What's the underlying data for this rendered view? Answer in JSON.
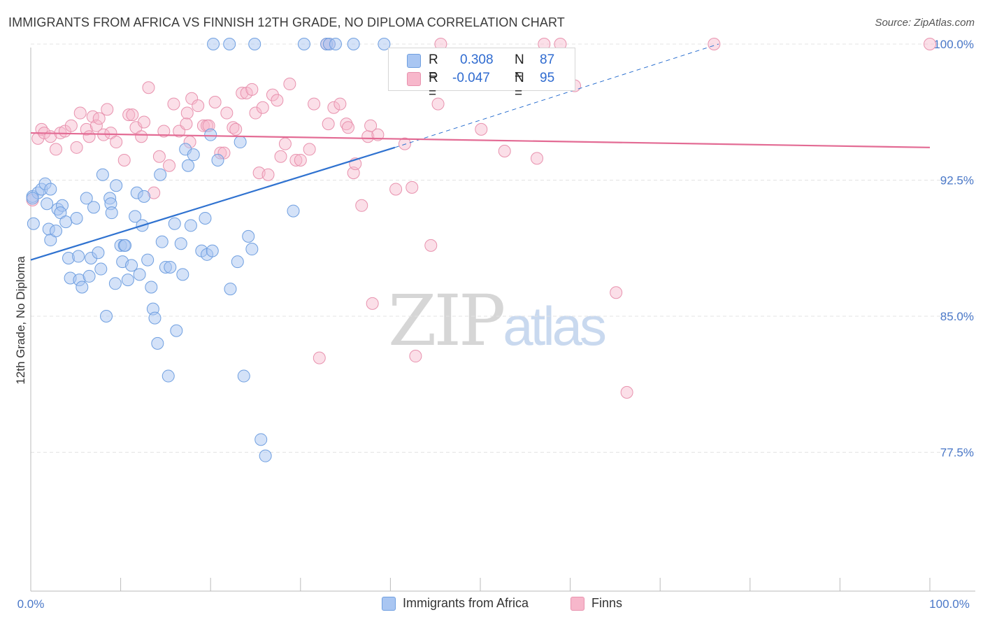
{
  "header": {
    "title": "IMMIGRANTS FROM AFRICA VS FINNISH 12TH GRADE, NO DIPLOMA CORRELATION CHART",
    "source": "Source: ZipAtlas.com"
  },
  "watermark": {
    "zip": "ZIP",
    "atlas": "atlas"
  },
  "legend_top": {
    "rows": [
      {
        "r_label": "R =",
        "r_value": "0.308",
        "n_label": "N =",
        "n_value": "87"
      },
      {
        "r_label": "R =",
        "r_value": "-0.047",
        "n_label": "N =",
        "n_value": "95"
      }
    ]
  },
  "legend_bottom": {
    "items": [
      {
        "label": "Immigrants from Africa"
      },
      {
        "label": "Finns"
      }
    ]
  },
  "colors": {
    "blue_fill": "#a9c6f2",
    "blue_stroke": "#6f9fe0",
    "blue_line": "#2f72d0",
    "pink_fill": "#f7b7cb",
    "pink_stroke": "#e892ae",
    "pink_line": "#e36b94",
    "grid": "#e3e3e3",
    "tick_label": "#4a78c8"
  },
  "chart_data": {
    "type": "scatter",
    "title": "IMMIGRANTS FROM AFRICA VS FINNISH 12TH GRADE, NO DIPLOMA CORRELATION CHART",
    "xlabel": "",
    "ylabel": "12th Grade, No Diploma",
    "xlim": [
      0,
      100
    ],
    "ylim": [
      70.5,
      101.5
    ],
    "x_tick_labels": [
      "0.0%",
      "100.0%"
    ],
    "y_ticks": [
      77.5,
      85.0,
      92.5,
      100.0
    ],
    "y_tick_labels": [
      "77.5%",
      "85.0%",
      "92.5%",
      "100.0%"
    ],
    "grid": true,
    "series": [
      {
        "name": "Immigrants from Africa",
        "r": 0.308,
        "n": 87,
        "trend": {
          "x0": 0,
          "y0": 88.1,
          "x1": 40.5,
          "y1": 94.3,
          "dash_to_x": 76.5,
          "dash_to_y": 100.0
        },
        "points": [
          [
            0.2,
            91.6
          ],
          [
            0.3,
            90.1
          ],
          [
            0.8,
            91.8
          ],
          [
            1.2,
            92.0
          ],
          [
            1.6,
            92.3
          ],
          [
            1.8,
            91.2
          ],
          [
            2.2,
            92.0
          ],
          [
            2.0,
            89.8
          ],
          [
            2.2,
            89.2
          ],
          [
            2.8,
            89.7
          ],
          [
            3.0,
            90.9
          ],
          [
            3.5,
            91.1
          ],
          [
            3.3,
            90.7
          ],
          [
            3.9,
            90.2
          ],
          [
            4.2,
            88.2
          ],
          [
            4.4,
            87.1
          ],
          [
            5.1,
            90.4
          ],
          [
            5.3,
            88.3
          ],
          [
            5.4,
            87.0
          ],
          [
            5.7,
            86.6
          ],
          [
            6.2,
            91.5
          ],
          [
            6.5,
            87.2
          ],
          [
            6.7,
            88.2
          ],
          [
            7.0,
            91.0
          ],
          [
            7.5,
            88.5
          ],
          [
            7.8,
            87.6
          ],
          [
            8.0,
            92.8
          ],
          [
            8.4,
            85.0
          ],
          [
            8.8,
            91.5
          ],
          [
            8.9,
            91.2
          ],
          [
            9.0,
            90.7
          ],
          [
            9.4,
            86.8
          ],
          [
            9.5,
            92.2
          ],
          [
            10.0,
            88.9
          ],
          [
            10.2,
            88.0
          ],
          [
            10.4,
            88.9
          ],
          [
            10.5,
            88.9
          ],
          [
            10.8,
            87.0
          ],
          [
            11.2,
            87.8
          ],
          [
            11.6,
            90.5
          ],
          [
            11.8,
            91.8
          ],
          [
            12.1,
            87.3
          ],
          [
            12.4,
            90.0
          ],
          [
            12.6,
            91.6
          ],
          [
            13.0,
            88.1
          ],
          [
            13.4,
            86.6
          ],
          [
            13.6,
            85.4
          ],
          [
            13.8,
            84.9
          ],
          [
            14.1,
            83.5
          ],
          [
            14.4,
            92.8
          ],
          [
            14.6,
            89.1
          ],
          [
            15.0,
            87.7
          ],
          [
            15.3,
            81.7
          ],
          [
            15.5,
            87.7
          ],
          [
            16.0,
            90.1
          ],
          [
            16.2,
            84.2
          ],
          [
            16.7,
            89.0
          ],
          [
            16.9,
            87.3
          ],
          [
            17.2,
            94.2
          ],
          [
            17.5,
            93.3
          ],
          [
            17.8,
            90.0
          ],
          [
            18.1,
            93.9
          ],
          [
            19.0,
            88.6
          ],
          [
            19.4,
            90.4
          ],
          [
            19.6,
            88.4
          ],
          [
            20.0,
            95.0
          ],
          [
            20.2,
            88.6
          ],
          [
            20.8,
            93.6
          ],
          [
            22.2,
            86.5
          ],
          [
            23.0,
            88.0
          ],
          [
            23.3,
            94.6
          ],
          [
            23.7,
            81.7
          ],
          [
            24.2,
            89.4
          ],
          [
            24.6,
            88.7
          ],
          [
            25.6,
            78.2
          ],
          [
            26.1,
            77.3
          ],
          [
            29.2,
            90.8
          ],
          [
            20.3,
            100.0
          ],
          [
            22.1,
            100.0
          ],
          [
            24.9,
            100.0
          ],
          [
            30.4,
            100.0
          ],
          [
            32.9,
            100.0
          ],
          [
            33.2,
            100.0
          ],
          [
            33.9,
            100.0
          ],
          [
            35.9,
            100.0
          ],
          [
            39.3,
            100.0
          ],
          [
            0.2,
            91.5
          ]
        ]
      },
      {
        "name": "Finns",
        "r": -0.047,
        "n": 95,
        "trend": {
          "x0": 0,
          "y0": 95.1,
          "x1": 100,
          "y1": 94.3
        },
        "points": [
          [
            0.2,
            91.4
          ],
          [
            0.8,
            94.8
          ],
          [
            1.2,
            95.3
          ],
          [
            1.5,
            95.1
          ],
          [
            2.2,
            94.9
          ],
          [
            2.8,
            94.2
          ],
          [
            3.3,
            95.1
          ],
          [
            3.8,
            95.2
          ],
          [
            4.5,
            95.5
          ],
          [
            5.1,
            94.3
          ],
          [
            5.5,
            96.2
          ],
          [
            6.2,
            95.3
          ],
          [
            6.5,
            94.9
          ],
          [
            6.9,
            96.0
          ],
          [
            7.3,
            95.5
          ],
          [
            7.6,
            95.9
          ],
          [
            8.1,
            95.0
          ],
          [
            8.5,
            96.4
          ],
          [
            8.9,
            95.1
          ],
          [
            9.5,
            94.6
          ],
          [
            10.4,
            93.6
          ],
          [
            10.9,
            96.1
          ],
          [
            11.3,
            96.1
          ],
          [
            11.7,
            95.4
          ],
          [
            12.3,
            94.9
          ],
          [
            12.6,
            95.7
          ],
          [
            13.1,
            97.6
          ],
          [
            13.7,
            91.8
          ],
          [
            14.3,
            93.8
          ],
          [
            14.8,
            95.2
          ],
          [
            15.4,
            93.3
          ],
          [
            15.9,
            96.7
          ],
          [
            16.5,
            95.2
          ],
          [
            17.3,
            95.6
          ],
          [
            17.7,
            94.6
          ],
          [
            17.4,
            96.2
          ],
          [
            17.9,
            97.0
          ],
          [
            18.6,
            96.6
          ],
          [
            19.2,
            95.5
          ],
          [
            19.6,
            95.5
          ],
          [
            19.8,
            95.5
          ],
          [
            20.5,
            96.8
          ],
          [
            21.1,
            94.0
          ],
          [
            21.5,
            94.0
          ],
          [
            21.8,
            96.2
          ],
          [
            22.5,
            95.4
          ],
          [
            22.8,
            95.3
          ],
          [
            23.5,
            97.3
          ],
          [
            24.0,
            97.3
          ],
          [
            24.6,
            97.5
          ],
          [
            25.0,
            96.2
          ],
          [
            25.4,
            92.9
          ],
          [
            25.8,
            96.5
          ],
          [
            26.4,
            92.8
          ],
          [
            26.9,
            97.2
          ],
          [
            27.4,
            96.9
          ],
          [
            27.8,
            93.8
          ],
          [
            28.3,
            94.5
          ],
          [
            28.8,
            97.8
          ],
          [
            29.5,
            93.6
          ],
          [
            30.0,
            93.6
          ],
          [
            31.0,
            94.2
          ],
          [
            31.5,
            96.7
          ],
          [
            32.1,
            82.7
          ],
          [
            32.9,
            100.0
          ],
          [
            33.1,
            95.6
          ],
          [
            33.7,
            96.5
          ],
          [
            34.4,
            96.7
          ],
          [
            35.1,
            95.6
          ],
          [
            35.3,
            95.4
          ],
          [
            35.9,
            92.9
          ],
          [
            36.8,
            91.1
          ],
          [
            37.5,
            94.9
          ],
          [
            37.8,
            95.5
          ],
          [
            38.0,
            85.7
          ],
          [
            38.6,
            95.0
          ],
          [
            40.6,
            92.0
          ],
          [
            41.6,
            94.5
          ],
          [
            42.4,
            92.1
          ],
          [
            42.8,
            82.8
          ],
          [
            44.5,
            88.9
          ],
          [
            45.3,
            96.7
          ],
          [
            45.6,
            100.0
          ],
          [
            50.1,
            95.3
          ],
          [
            52.7,
            94.1
          ],
          [
            56.3,
            93.7
          ],
          [
            57.1,
            100.0
          ],
          [
            60.5,
            97.7
          ],
          [
            65.1,
            86.3
          ],
          [
            66.3,
            80.8
          ],
          [
            76.0,
            100.0
          ],
          [
            100.0,
            100.0
          ],
          [
            33.2,
            100.0
          ],
          [
            58.9,
            100.0
          ],
          [
            36.1,
            93.4
          ]
        ]
      }
    ]
  }
}
